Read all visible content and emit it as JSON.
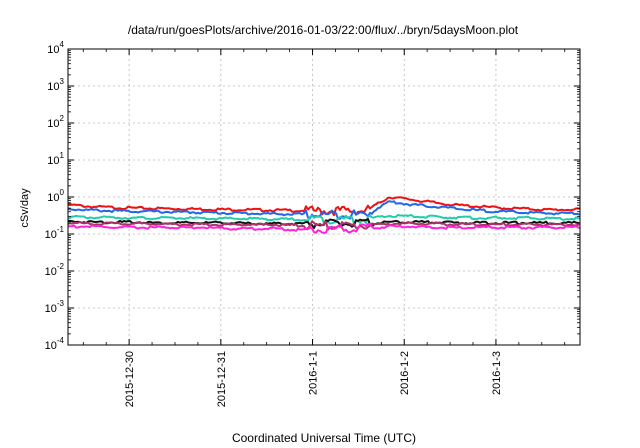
{
  "chart_data": {
    "type": "line",
    "title": "/data/run/goesPlots/archive/2016-01-03/22:00/flux/../bryn/5daysMoon.plot",
    "xlabel": "Coordinated Universal Time (UTC)",
    "ylabel": "cSv/day",
    "yscale": "log",
    "ylim": [
      0.0001,
      10000
    ],
    "xlim": [
      "2015-12-29 08:00",
      "2016-01-03 22:00"
    ],
    "grid": true,
    "x_ticks": [
      "2015-12-30",
      "2015-12-31",
      "2016-1-1",
      "2016-1-2",
      "2016-1-3"
    ],
    "y_ticks": [
      {
        "base": "10",
        "exp": "-4"
      },
      {
        "base": "10",
        "exp": "-3"
      },
      {
        "base": "10",
        "exp": "-2"
      },
      {
        "base": "10",
        "exp": "-1"
      },
      {
        "base": "10",
        "exp": "0"
      },
      {
        "base": "10",
        "exp": "1"
      },
      {
        "base": "10",
        "exp": "2"
      },
      {
        "base": "10",
        "exp": "3"
      },
      {
        "base": "10",
        "exp": "4"
      }
    ],
    "x_hours": [
      0,
      6,
      12,
      18,
      24,
      30,
      36,
      42,
      48,
      54,
      60,
      66,
      72,
      78,
      84,
      90,
      96,
      102,
      108,
      114,
      120,
      126,
      132,
      134
    ],
    "series": [
      {
        "color": "#ee1111",
        "values": [
          0.62,
          0.55,
          0.52,
          0.5,
          0.49,
          0.48,
          0.47,
          0.46,
          0.45,
          0.44,
          0.43,
          0.42,
          0.43,
          0.42,
          1.0,
          0.85,
          0.7,
          0.6,
          0.55,
          0.5,
          0.48,
          0.45,
          0.46,
          0.45
        ]
      },
      {
        "color": "#2266ee",
        "values": [
          0.48,
          0.44,
          0.42,
          0.41,
          0.4,
          0.39,
          0.38,
          0.37,
          0.36,
          0.35,
          0.34,
          0.33,
          0.34,
          0.33,
          0.75,
          0.62,
          0.55,
          0.48,
          0.43,
          0.4,
          0.38,
          0.36,
          0.37,
          0.36
        ]
      },
      {
        "color": "#22ccaa",
        "values": [
          0.29,
          0.28,
          0.28,
          0.27,
          0.27,
          0.27,
          0.26,
          0.26,
          0.26,
          0.25,
          0.25,
          0.25,
          0.25,
          0.25,
          0.31,
          0.3,
          0.29,
          0.28,
          0.27,
          0.27,
          0.27,
          0.26,
          0.26,
          0.26
        ]
      },
      {
        "color": "#111111",
        "values": [
          0.22,
          0.21,
          0.21,
          0.21,
          0.2,
          0.2,
          0.2,
          0.2,
          0.19,
          0.19,
          0.19,
          0.19,
          0.19,
          0.19,
          0.21,
          0.21,
          0.21,
          0.2,
          0.2,
          0.2,
          0.2,
          0.2,
          0.2,
          0.2
        ]
      },
      {
        "color": "#aa3366",
        "values": [
          0.2,
          0.19,
          0.19,
          0.19,
          0.19,
          0.18,
          0.18,
          0.18,
          0.18,
          0.18,
          0.17,
          0.17,
          0.17,
          0.17,
          0.19,
          0.19,
          0.19,
          0.18,
          0.18,
          0.18,
          0.18,
          0.18,
          0.18,
          0.18
        ]
      },
      {
        "color": "#ff22dd",
        "values": [
          0.16,
          0.16,
          0.15,
          0.15,
          0.15,
          0.15,
          0.15,
          0.14,
          0.14,
          0.14,
          0.13,
          0.13,
          0.14,
          0.14,
          0.16,
          0.16,
          0.15,
          0.15,
          0.15,
          0.15,
          0.15,
          0.15,
          0.15,
          0.15
        ]
      }
    ]
  }
}
